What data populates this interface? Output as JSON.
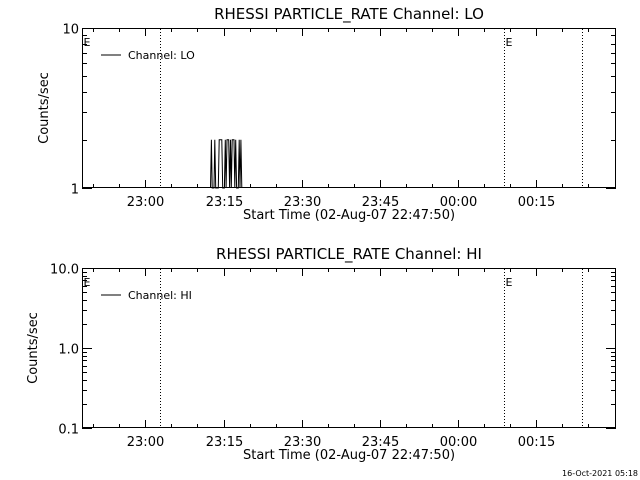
{
  "chart_data": [
    {
      "type": "line",
      "title": "RHESSI PARTICLE_RATE Channel: LO",
      "xlabel": "Start Time (02-Aug-07 22:47:50)",
      "ylabel": "Counts/sec",
      "x_start": "22:47:50",
      "x_end": "00:30:20",
      "x_ticks": [
        "23:00",
        "23:15",
        "23:30",
        "23:45",
        "00:00",
        "00:15"
      ],
      "y_scale": "log",
      "ylim": [
        1,
        10
      ],
      "y_ticks": [
        {
          "value": 10,
          "label": "10"
        },
        {
          "value": 1,
          "label": "1"
        }
      ],
      "legend": {
        "position": "top-left",
        "entries": [
          "Channel: LO"
        ]
      },
      "markers": [
        {
          "time": "22:47:50",
          "label": "E"
        },
        {
          "time": "23:02:50",
          "label": ""
        },
        {
          "time": "00:08:50",
          "label": "E"
        },
        {
          "time": "00:23:50",
          "label": ""
        }
      ],
      "series": [
        {
          "name": "Channel: LO",
          "points": [
            [
              "23:12:30",
              1
            ],
            [
              "23:12:40",
              2
            ],
            [
              "23:12:50",
              1
            ],
            [
              "23:13:10",
              1
            ],
            [
              "23:13:20",
              2
            ],
            [
              "23:13:30",
              1
            ],
            [
              "23:14:00",
              1
            ],
            [
              "23:14:10",
              2
            ],
            [
              "23:14:40",
              2
            ],
            [
              "23:14:50",
              1
            ],
            [
              "23:15:10",
              1
            ],
            [
              "23:15:20",
              2
            ],
            [
              "23:15:30",
              1
            ],
            [
              "23:15:40",
              2
            ],
            [
              "23:16:00",
              2
            ],
            [
              "23:16:10",
              1
            ],
            [
              "23:16:20",
              2
            ],
            [
              "23:16:30",
              1
            ],
            [
              "23:16:40",
              2
            ],
            [
              "23:17:00",
              2
            ],
            [
              "23:17:10",
              1
            ],
            [
              "23:17:20",
              2
            ],
            [
              "23:17:30",
              1
            ],
            [
              "23:17:50",
              1
            ],
            [
              "23:18:00",
              2
            ],
            [
              "23:18:10",
              1
            ],
            [
              "23:18:20",
              2
            ],
            [
              "23:18:30",
              1
            ]
          ]
        }
      ]
    },
    {
      "type": "line",
      "title": "RHESSI PARTICLE_RATE Channel: HI",
      "xlabel": "Start Time (02-Aug-07 22:47:50)",
      "ylabel": "Counts/sec",
      "x_start": "22:47:50",
      "x_end": "00:30:20",
      "x_ticks": [
        "23:00",
        "23:15",
        "23:30",
        "23:45",
        "00:00",
        "00:15"
      ],
      "y_scale": "log",
      "ylim": [
        0.1,
        10
      ],
      "y_ticks": [
        {
          "value": 10,
          "label": "10.0"
        },
        {
          "value": 1,
          "label": "1.0"
        },
        {
          "value": 0.1,
          "label": "0.1"
        }
      ],
      "legend": {
        "position": "top-left",
        "entries": [
          "Channel: HI"
        ]
      },
      "markers": [
        {
          "time": "22:47:50",
          "label": "E"
        },
        {
          "time": "23:02:50",
          "label": ""
        },
        {
          "time": "00:08:50",
          "label": "E"
        },
        {
          "time": "00:23:50",
          "label": ""
        }
      ],
      "series": [
        {
          "name": "Channel: HI",
          "points": []
        }
      ]
    }
  ],
  "footer": {
    "timestamp": "16-Oct-2021 05:18"
  }
}
